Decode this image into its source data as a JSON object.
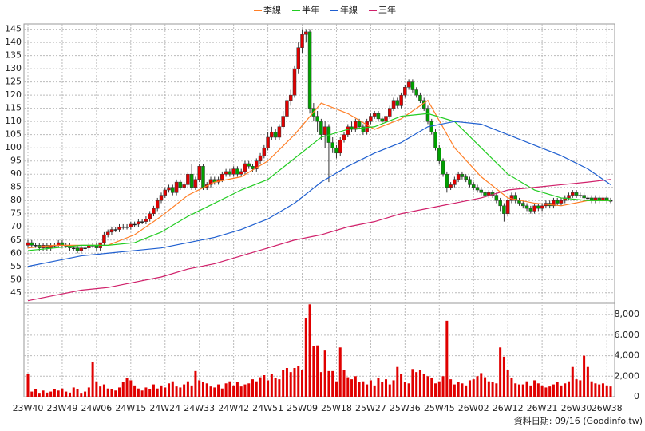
{
  "chart_data": {
    "type": "candlestick",
    "legend": "top",
    "grid": true,
    "up_color": "#e00000",
    "down_color": "#00a000",
    "categories": [
      "23W40",
      null,
      null,
      null,
      null,
      null,
      null,
      null,
      null,
      "23W49",
      null,
      null,
      null,
      null,
      null,
      null,
      null,
      null,
      "24W06",
      null,
      null,
      null,
      null,
      null,
      null,
      null,
      null,
      "24W15",
      null,
      null,
      null,
      null,
      null,
      null,
      null,
      null,
      "24W24",
      null,
      null,
      null,
      null,
      null,
      null,
      null,
      null,
      "24W33",
      null,
      null,
      null,
      null,
      null,
      null,
      null,
      null,
      "24W42",
      null,
      null,
      null,
      null,
      null,
      null,
      null,
      null,
      "24W51",
      null,
      null,
      null,
      null,
      null,
      null,
      null,
      null,
      "25W09",
      null,
      null,
      null,
      null,
      null,
      null,
      null,
      null,
      "25W18",
      null,
      null,
      null,
      null,
      null,
      null,
      null,
      null,
      "25W27",
      null,
      null,
      null,
      null,
      null,
      null,
      null,
      null,
      "25W36",
      null,
      null,
      null,
      null,
      null,
      null,
      null,
      null,
      "25W45",
      null,
      null,
      null,
      null,
      null,
      null,
      null,
      null,
      "26W02",
      null,
      null,
      null,
      null,
      null,
      null,
      null,
      null,
      "26W12",
      null,
      null,
      null,
      null,
      null,
      null,
      null,
      null,
      "26W21",
      null,
      null,
      null,
      null,
      null,
      null,
      null,
      null,
      "26W30",
      null,
      null,
      null,
      null,
      null,
      null,
      null,
      "26W38",
      null
    ],
    "ylim": [
      41,
      147
    ],
    "yticks": [
      45,
      50,
      55,
      60,
      65,
      70,
      75,
      80,
      85,
      90,
      95,
      100,
      105,
      110,
      115,
      120,
      125,
      130,
      135,
      140,
      145
    ],
    "open": [
      63,
      64,
      63,
      63,
      62,
      63,
      62,
      63,
      63,
      64,
      63,
      63,
      62,
      62,
      61,
      62,
      62,
      63,
      63,
      62,
      64,
      67,
      68,
      69,
      69,
      70,
      70,
      70,
      71,
      71,
      72,
      72,
      73,
      75,
      77,
      80,
      82,
      84,
      85,
      83,
      87,
      85,
      86,
      90,
      85,
      88,
      93,
      85,
      86,
      88,
      87,
      88,
      90,
      91,
      90,
      92,
      90,
      91,
      94,
      93,
      92,
      95,
      97,
      100,
      104,
      106,
      104,
      108,
      112,
      118,
      120,
      130,
      138,
      143,
      144,
      115,
      112,
      110,
      105,
      108,
      102,
      100,
      98,
      103,
      105,
      108,
      107,
      110,
      108,
      106,
      110,
      112,
      113,
      111,
      110,
      112,
      115,
      118,
      116,
      120,
      123,
      125,
      122,
      120,
      118,
      115,
      110,
      106,
      100,
      95,
      90,
      85,
      86,
      88,
      90,
      89,
      88,
      86,
      85,
      84,
      83,
      82,
      83,
      82,
      80,
      78,
      75,
      80,
      82,
      80,
      79,
      78,
      77,
      76,
      78,
      77,
      78,
      79,
      78,
      80,
      79,
      80,
      81,
      82,
      83,
      82,
      82,
      81,
      81,
      80,
      81,
      80,
      81,
      80
    ],
    "high": [
      65,
      65,
      64,
      64,
      64,
      64,
      64,
      64,
      65,
      65,
      64,
      64,
      63,
      63,
      63,
      63,
      64,
      64,
      64,
      64,
      68,
      69,
      70,
      70,
      71,
      71,
      71,
      72,
      72,
      73,
      73,
      74,
      76,
      78,
      81,
      83,
      85,
      86,
      86,
      88,
      88,
      87,
      91,
      94,
      89,
      94,
      94,
      87,
      89,
      89,
      89,
      91,
      92,
      92,
      93,
      93,
      92,
      95,
      95,
      94,
      96,
      98,
      101,
      106,
      108,
      107,
      109,
      114,
      119,
      122,
      131,
      140,
      145,
      145,
      145,
      117,
      114,
      111,
      110,
      109,
      104,
      101,
      104,
      106,
      109,
      110,
      111,
      111,
      109,
      111,
      113,
      114,
      114,
      112,
      113,
      116,
      119,
      119,
      121,
      124,
      126,
      126,
      123,
      121,
      119,
      116,
      111,
      107,
      101,
      96,
      91,
      87,
      89,
      91,
      91,
      90,
      89,
      87,
      86,
      85,
      84,
      84,
      84,
      83,
      81,
      79,
      81,
      83,
      83,
      81,
      80,
      79,
      78,
      79,
      79,
      79,
      80,
      80,
      81,
      81,
      81,
      82,
      83,
      84,
      84,
      83,
      83,
      82,
      82,
      82,
      82,
      82,
      82,
      81
    ],
    "low": [
      62,
      62,
      62,
      61,
      61,
      61,
      61,
      62,
      62,
      62,
      62,
      61,
      61,
      60,
      60,
      61,
      61,
      62,
      61,
      61,
      63,
      66,
      67,
      68,
      68,
      69,
      69,
      69,
      70,
      70,
      71,
      71,
      72,
      74,
      76,
      79,
      81,
      83,
      82,
      82,
      84,
      84,
      85,
      84,
      84,
      87,
      84,
      84,
      85,
      86,
      86,
      87,
      89,
      89,
      89,
      89,
      89,
      90,
      92,
      91,
      91,
      94,
      96,
      99,
      103,
      103,
      103,
      107,
      111,
      116,
      119,
      128,
      136,
      140,
      113,
      110,
      106,
      103,
      100,
      87,
      98,
      96,
      97,
      102,
      104,
      106,
      106,
      107,
      105,
      105,
      109,
      111,
      110,
      109,
      109,
      111,
      114,
      115,
      115,
      119,
      122,
      121,
      119,
      117,
      114,
      109,
      105,
      99,
      94,
      89,
      83,
      84,
      85,
      87,
      88,
      87,
      85,
      84,
      83,
      82,
      81,
      81,
      81,
      79,
      76,
      72,
      74,
      79,
      79,
      78,
      77,
      76,
      75,
      75,
      76,
      76,
      77,
      77,
      77,
      78,
      78,
      79,
      80,
      81,
      81,
      81,
      80,
      80,
      79,
      79,
      79,
      79,
      79,
      79
    ],
    "close": [
      64,
      63,
      63,
      62,
      63,
      62,
      63,
      63,
      64,
      63,
      63,
      62,
      62,
      61,
      62,
      62,
      63,
      63,
      62,
      64,
      67,
      68,
      69,
      69,
      70,
      70,
      70,
      71,
      71,
      72,
      72,
      73,
      75,
      77,
      80,
      82,
      84,
      85,
      83,
      87,
      85,
      86,
      90,
      85,
      88,
      93,
      85,
      86,
      88,
      87,
      88,
      90,
      91,
      90,
      92,
      90,
      91,
      94,
      93,
      92,
      95,
      97,
      100,
      104,
      106,
      104,
      108,
      112,
      118,
      120,
      130,
      138,
      143,
      144,
      115,
      112,
      110,
      105,
      108,
      102,
      100,
      98,
      103,
      105,
      108,
      107,
      110,
      108,
      106,
      110,
      112,
      113,
      111,
      110,
      112,
      115,
      118,
      116,
      120,
      123,
      125,
      122,
      120,
      118,
      115,
      110,
      106,
      100,
      95,
      90,
      85,
      86,
      88,
      90,
      89,
      88,
      86,
      85,
      84,
      83,
      82,
      83,
      82,
      80,
      78,
      75,
      80,
      82,
      80,
      79,
      78,
      77,
      76,
      78,
      77,
      78,
      79,
      78,
      80,
      79,
      80,
      81,
      82,
      83,
      82,
      82,
      81,
      81,
      80,
      81,
      80,
      81,
      80,
      80
    ],
    "series": [
      {
        "name": "季線",
        "color": "#ff7f27",
        "x": [
          0,
          7,
          14,
          21,
          28,
          35,
          42,
          49,
          56,
          63,
          70,
          77,
          84,
          91,
          98,
          105,
          112,
          119,
          126,
          133,
          140,
          147,
          153
        ],
        "values": [
          62,
          63,
          63,
          63,
          67,
          74,
          82,
          87,
          89,
          95,
          105,
          117,
          113,
          107,
          111,
          118,
          100,
          89,
          81,
          79,
          78,
          80,
          80
        ]
      },
      {
        "name": "半年",
        "color": "#22cc22",
        "x": [
          0,
          7,
          14,
          21,
          28,
          35,
          42,
          49,
          56,
          63,
          70,
          77,
          84,
          91,
          98,
          105,
          112,
          119,
          126,
          133,
          140,
          147,
          153
        ],
        "values": [
          61,
          62,
          63,
          63,
          64,
          68,
          74,
          79,
          84,
          88,
          96,
          104,
          107,
          108,
          112,
          113,
          110,
          100,
          90,
          84,
          81,
          80,
          80
        ]
      },
      {
        "name": "年線",
        "color": "#1f5fd0",
        "x": [
          0,
          7,
          14,
          21,
          28,
          35,
          42,
          49,
          56,
          63,
          70,
          77,
          84,
          91,
          98,
          105,
          112,
          119,
          126,
          133,
          140,
          147,
          153
        ],
        "values": [
          55,
          57,
          59,
          60,
          61,
          62,
          64,
          66,
          69,
          73,
          79,
          87,
          93,
          98,
          102,
          108,
          110,
          109,
          105,
          101,
          97,
          92,
          86
        ]
      },
      {
        "name": "三年",
        "color": "#d0206a",
        "x": [
          0,
          7,
          14,
          21,
          28,
          35,
          42,
          49,
          56,
          63,
          70,
          77,
          84,
          91,
          98,
          105,
          112,
          119,
          126,
          133,
          140,
          147,
          153
        ],
        "values": [
          42,
          44,
          46,
          47,
          49,
          51,
          54,
          56,
          59,
          62,
          65,
          67,
          70,
          72,
          75,
          77,
          79,
          81,
          84,
          85,
          86,
          87,
          88
        ]
      }
    ],
    "volume": {
      "color": "#e00000",
      "ylim": [
        0,
        9100
      ],
      "yticks": [
        0,
        {
          "value": 2000,
          "label": "2,000"
        },
        {
          "value": 4000,
          "label": "4,000"
        },
        {
          "value": 6000,
          "label": "6,000"
        },
        {
          "value": 8000,
          "label": "8,000"
        }
      ],
      "values": [
        2200,
        500,
        700,
        300,
        600,
        400,
        500,
        700,
        600,
        800,
        500,
        400,
        900,
        700,
        300,
        500,
        900,
        3400,
        1500,
        1000,
        1200,
        800,
        700,
        600,
        900,
        1400,
        1800,
        1600,
        1100,
        800,
        600,
        900,
        700,
        1200,
        800,
        1100,
        900,
        1300,
        1500,
        1000,
        900,
        1200,
        1500,
        1100,
        2500,
        1600,
        1400,
        1300,
        1000,
        900,
        1200,
        800,
        1300,
        1500,
        1100,
        1400,
        1000,
        1200,
        1300,
        1700,
        1500,
        1900,
        2100,
        1600,
        2200,
        1800,
        1700,
        2600,
        2800,
        2400,
        2800,
        3000,
        2600,
        7700,
        9000,
        4900,
        5000,
        2400,
        4500,
        2500,
        2500,
        1500,
        4800,
        2600,
        1900,
        1700,
        2000,
        1400,
        1500,
        1200,
        1600,
        1100,
        1800,
        1400,
        1700,
        1200,
        1600,
        2900,
        2200,
        1400,
        1300,
        2700,
        2400,
        2600,
        2200,
        2000,
        1800,
        1300,
        1500,
        2000,
        7400,
        1700,
        1200,
        1400,
        1300,
        1100,
        1600,
        1700,
        2000,
        2300,
        1900,
        1500,
        1400,
        1300,
        4800,
        3900,
        2600,
        1800,
        1300,
        1200,
        1200,
        1500,
        1100,
        1600,
        1300,
        1100,
        900,
        1000,
        1200,
        1400,
        1100,
        1300,
        1500,
        2900,
        1700,
        1600,
        4000,
        2900,
        1500,
        1300,
        1200,
        1300,
        1100,
        1000
      ]
    },
    "footer": "資料日期: 09/16  (Goodinfo.tw)"
  }
}
